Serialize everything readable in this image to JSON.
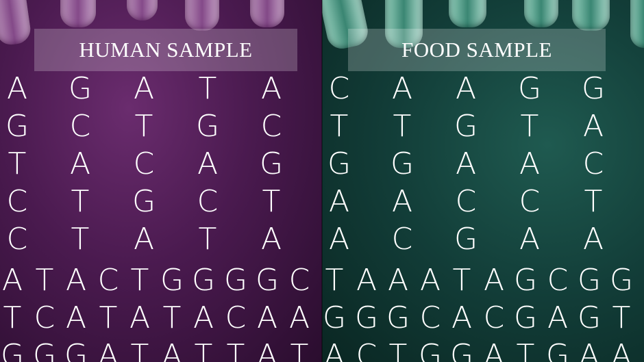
{
  "human": {
    "label": "HUMAN SAMPLE",
    "spaced_rows": [
      [
        "A",
        "G",
        "A",
        "T",
        "A"
      ],
      [
        "G",
        "C",
        "T",
        "G",
        "C"
      ],
      [
        "T",
        "A",
        "C",
        "A",
        "G"
      ],
      [
        "C",
        "T",
        "G",
        "C",
        "T"
      ],
      [
        "C",
        "T",
        "A",
        "T",
        "A"
      ]
    ],
    "dense_rows": [
      [
        "A",
        "T",
        "A",
        "C",
        "T",
        "G",
        "G",
        "G",
        "G",
        "C"
      ],
      [
        "T",
        "C",
        "A",
        "T",
        "A",
        "T",
        "A",
        "C",
        "A",
        "A"
      ],
      [
        "G",
        "G",
        "G",
        "A",
        "T",
        "A",
        "T",
        "T",
        "A",
        "T"
      ]
    ]
  },
  "food": {
    "label": "FOOD SAMPLE",
    "spaced_rows": [
      [
        "C",
        "A",
        "A",
        "G",
        "G"
      ],
      [
        "T",
        "T",
        "G",
        "T",
        "A"
      ],
      [
        "G",
        "G",
        "A",
        "A",
        "C"
      ],
      [
        "A",
        "A",
        "C",
        "C",
        "T"
      ],
      [
        "A",
        "C",
        "G",
        "A",
        "A"
      ]
    ],
    "dense_rows": [
      [
        "T",
        "A",
        "A",
        "A",
        "T",
        "A",
        "G",
        "C",
        "G",
        "G"
      ],
      [
        "G",
        "G",
        "G",
        "C",
        "A",
        "C",
        "G",
        "A",
        "G",
        "T"
      ],
      [
        "A",
        "C",
        "T",
        "G",
        "G",
        "A",
        "T",
        "G",
        "A",
        "A"
      ]
    ]
  },
  "colors": {
    "human_bg": "#4a1a4f",
    "food_bg": "#123d38",
    "text": "#ffffff"
  }
}
